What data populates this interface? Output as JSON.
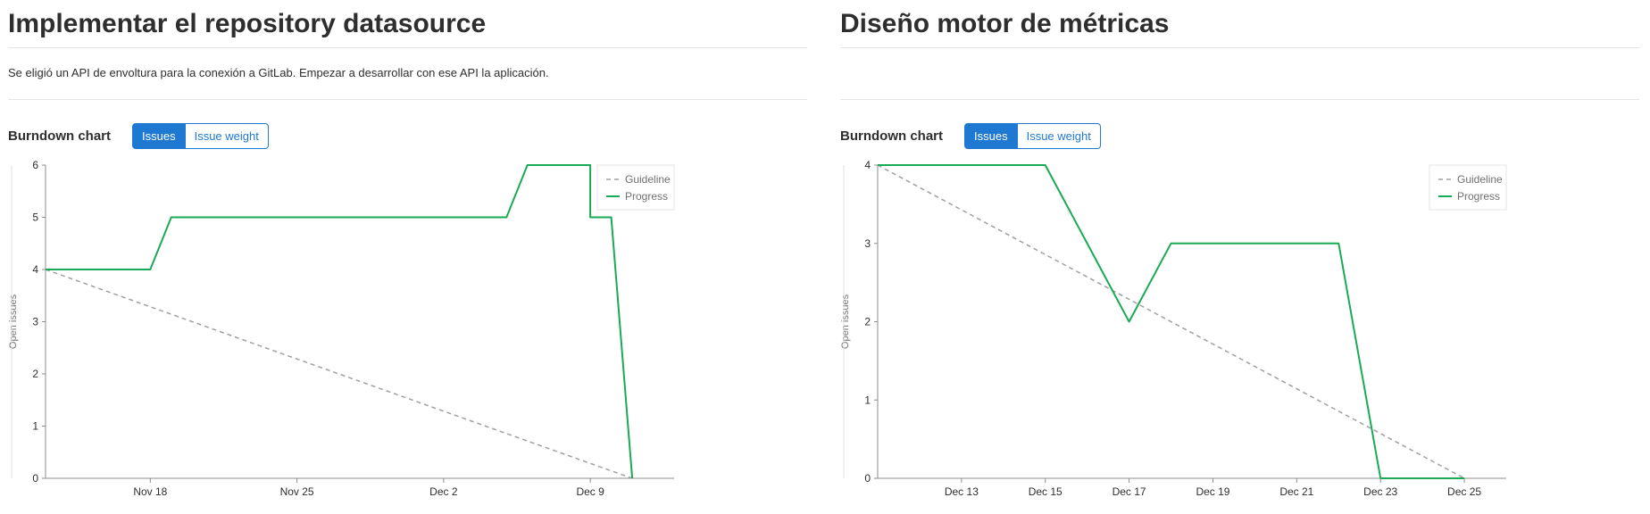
{
  "panels": [
    {
      "title": "Implementar el repository datasource",
      "description": "Se eligió un API de envoltura para la conexión a GitLab. Empezar a desarrollar con ese API la aplicación.",
      "burndown_label": "Burndown chart",
      "toggle": [
        "Issues",
        "Issue weight"
      ],
      "toggle_selected": "Issues"
    },
    {
      "title": "Diseño motor de métricas",
      "description": "",
      "burndown_label": "Burndown chart",
      "toggle": [
        "Issues",
        "Issue weight"
      ],
      "toggle_selected": "Issues"
    }
  ],
  "colors": {
    "progress": "#1aaa55",
    "guideline": "#a0a0a0",
    "accent": "#1f78d1"
  },
  "chart_data": [
    {
      "type": "line",
      "ylabel": "Open issues",
      "xlim": [
        "2018-11-13",
        "2018-12-13"
      ],
      "ylim": [
        0,
        6
      ],
      "yticks": [
        0,
        1,
        2,
        3,
        4,
        5,
        6
      ],
      "xticks": [
        {
          "date": "2018-11-18",
          "label": "Nov 18"
        },
        {
          "date": "2018-11-25",
          "label": "Nov 25"
        },
        {
          "date": "2018-12-02",
          "label": "Dec 2"
        },
        {
          "date": "2018-12-09",
          "label": "Dec 9"
        }
      ],
      "legend": {
        "position": "top-right",
        "entries": [
          "Guideline",
          "Progress"
        ]
      },
      "series": [
        {
          "name": "Guideline",
          "style": "dashed",
          "points": [
            [
              "2018-11-13",
              4
            ],
            [
              "2018-12-11",
              0
            ]
          ]
        },
        {
          "name": "Progress",
          "style": "solid",
          "points": [
            [
              "2018-11-13",
              4
            ],
            [
              "2018-11-18",
              4
            ],
            [
              "2018-11-19",
              5
            ],
            [
              "2018-12-05",
              5
            ],
            [
              "2018-12-06",
              6
            ],
            [
              "2018-12-09",
              6
            ],
            [
              "2018-12-09",
              5
            ],
            [
              "2018-12-10",
              5
            ],
            [
              "2018-12-11",
              0
            ]
          ]
        }
      ]
    },
    {
      "type": "line",
      "ylabel": "Open issues",
      "xlim": [
        "2018-12-11",
        "2018-12-26"
      ],
      "ylim": [
        0,
        4
      ],
      "yticks": [
        0,
        1,
        2,
        3,
        4
      ],
      "xticks": [
        {
          "date": "2018-12-13",
          "label": "Dec 13"
        },
        {
          "date": "2018-12-15",
          "label": "Dec 15"
        },
        {
          "date": "2018-12-17",
          "label": "Dec 17"
        },
        {
          "date": "2018-12-19",
          "label": "Dec 19"
        },
        {
          "date": "2018-12-21",
          "label": "Dec 21"
        },
        {
          "date": "2018-12-23",
          "label": "Dec 23"
        },
        {
          "date": "2018-12-25",
          "label": "Dec 25"
        }
      ],
      "legend": {
        "position": "top-right",
        "entries": [
          "Guideline",
          "Progress"
        ]
      },
      "series": [
        {
          "name": "Guideline",
          "style": "dashed",
          "points": [
            [
              "2018-12-11",
              4
            ],
            [
              "2018-12-25",
              0
            ]
          ]
        },
        {
          "name": "Progress",
          "style": "solid",
          "points": [
            [
              "2018-12-11",
              4
            ],
            [
              "2018-12-15",
              4
            ],
            [
              "2018-12-17",
              2
            ],
            [
              "2018-12-18",
              3
            ],
            [
              "2018-12-22",
              3
            ],
            [
              "2018-12-23",
              0
            ],
            [
              "2018-12-25",
              0
            ]
          ]
        }
      ]
    }
  ]
}
